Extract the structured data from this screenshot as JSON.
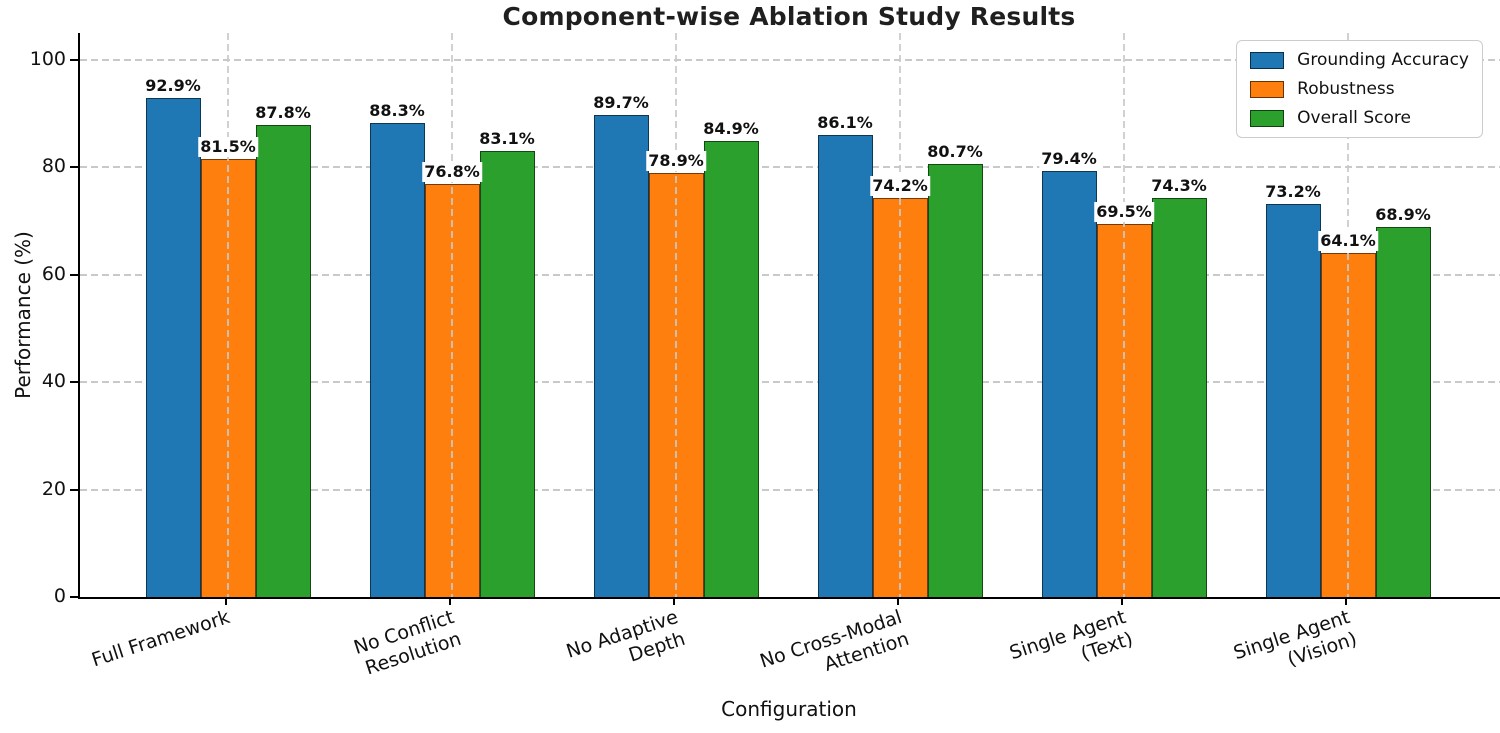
{
  "chart_data": {
    "type": "bar",
    "title": "Component-wise Ablation Study Results",
    "xlabel": "Configuration",
    "ylabel": "Performance (%)",
    "categories": [
      "Full Framework",
      "No Conflict\nResolution",
      "No Adaptive\nDepth",
      "No Cross-Modal\nAttention",
      "Single Agent\n(Text)",
      "Single Agent\n(Vision)"
    ],
    "series": [
      {
        "name": "Grounding Accuracy",
        "color": "#1f77b4",
        "values": [
          92.9,
          88.3,
          89.7,
          86.1,
          79.4,
          73.2
        ]
      },
      {
        "name": "Robustness",
        "color": "#ff7f0e",
        "values": [
          81.5,
          76.8,
          78.9,
          74.2,
          69.5,
          64.1
        ]
      },
      {
        "name": "Overall Score",
        "color": "#2ca02c",
        "values": [
          87.8,
          83.1,
          84.9,
          80.7,
          74.3,
          68.9
        ]
      }
    ],
    "value_label_suffix": "%",
    "ylim": [
      0,
      105
    ],
    "yticks": [
      0,
      20,
      40,
      60,
      80,
      100
    ],
    "grid": "dashed",
    "legend_position": "top-right"
  }
}
